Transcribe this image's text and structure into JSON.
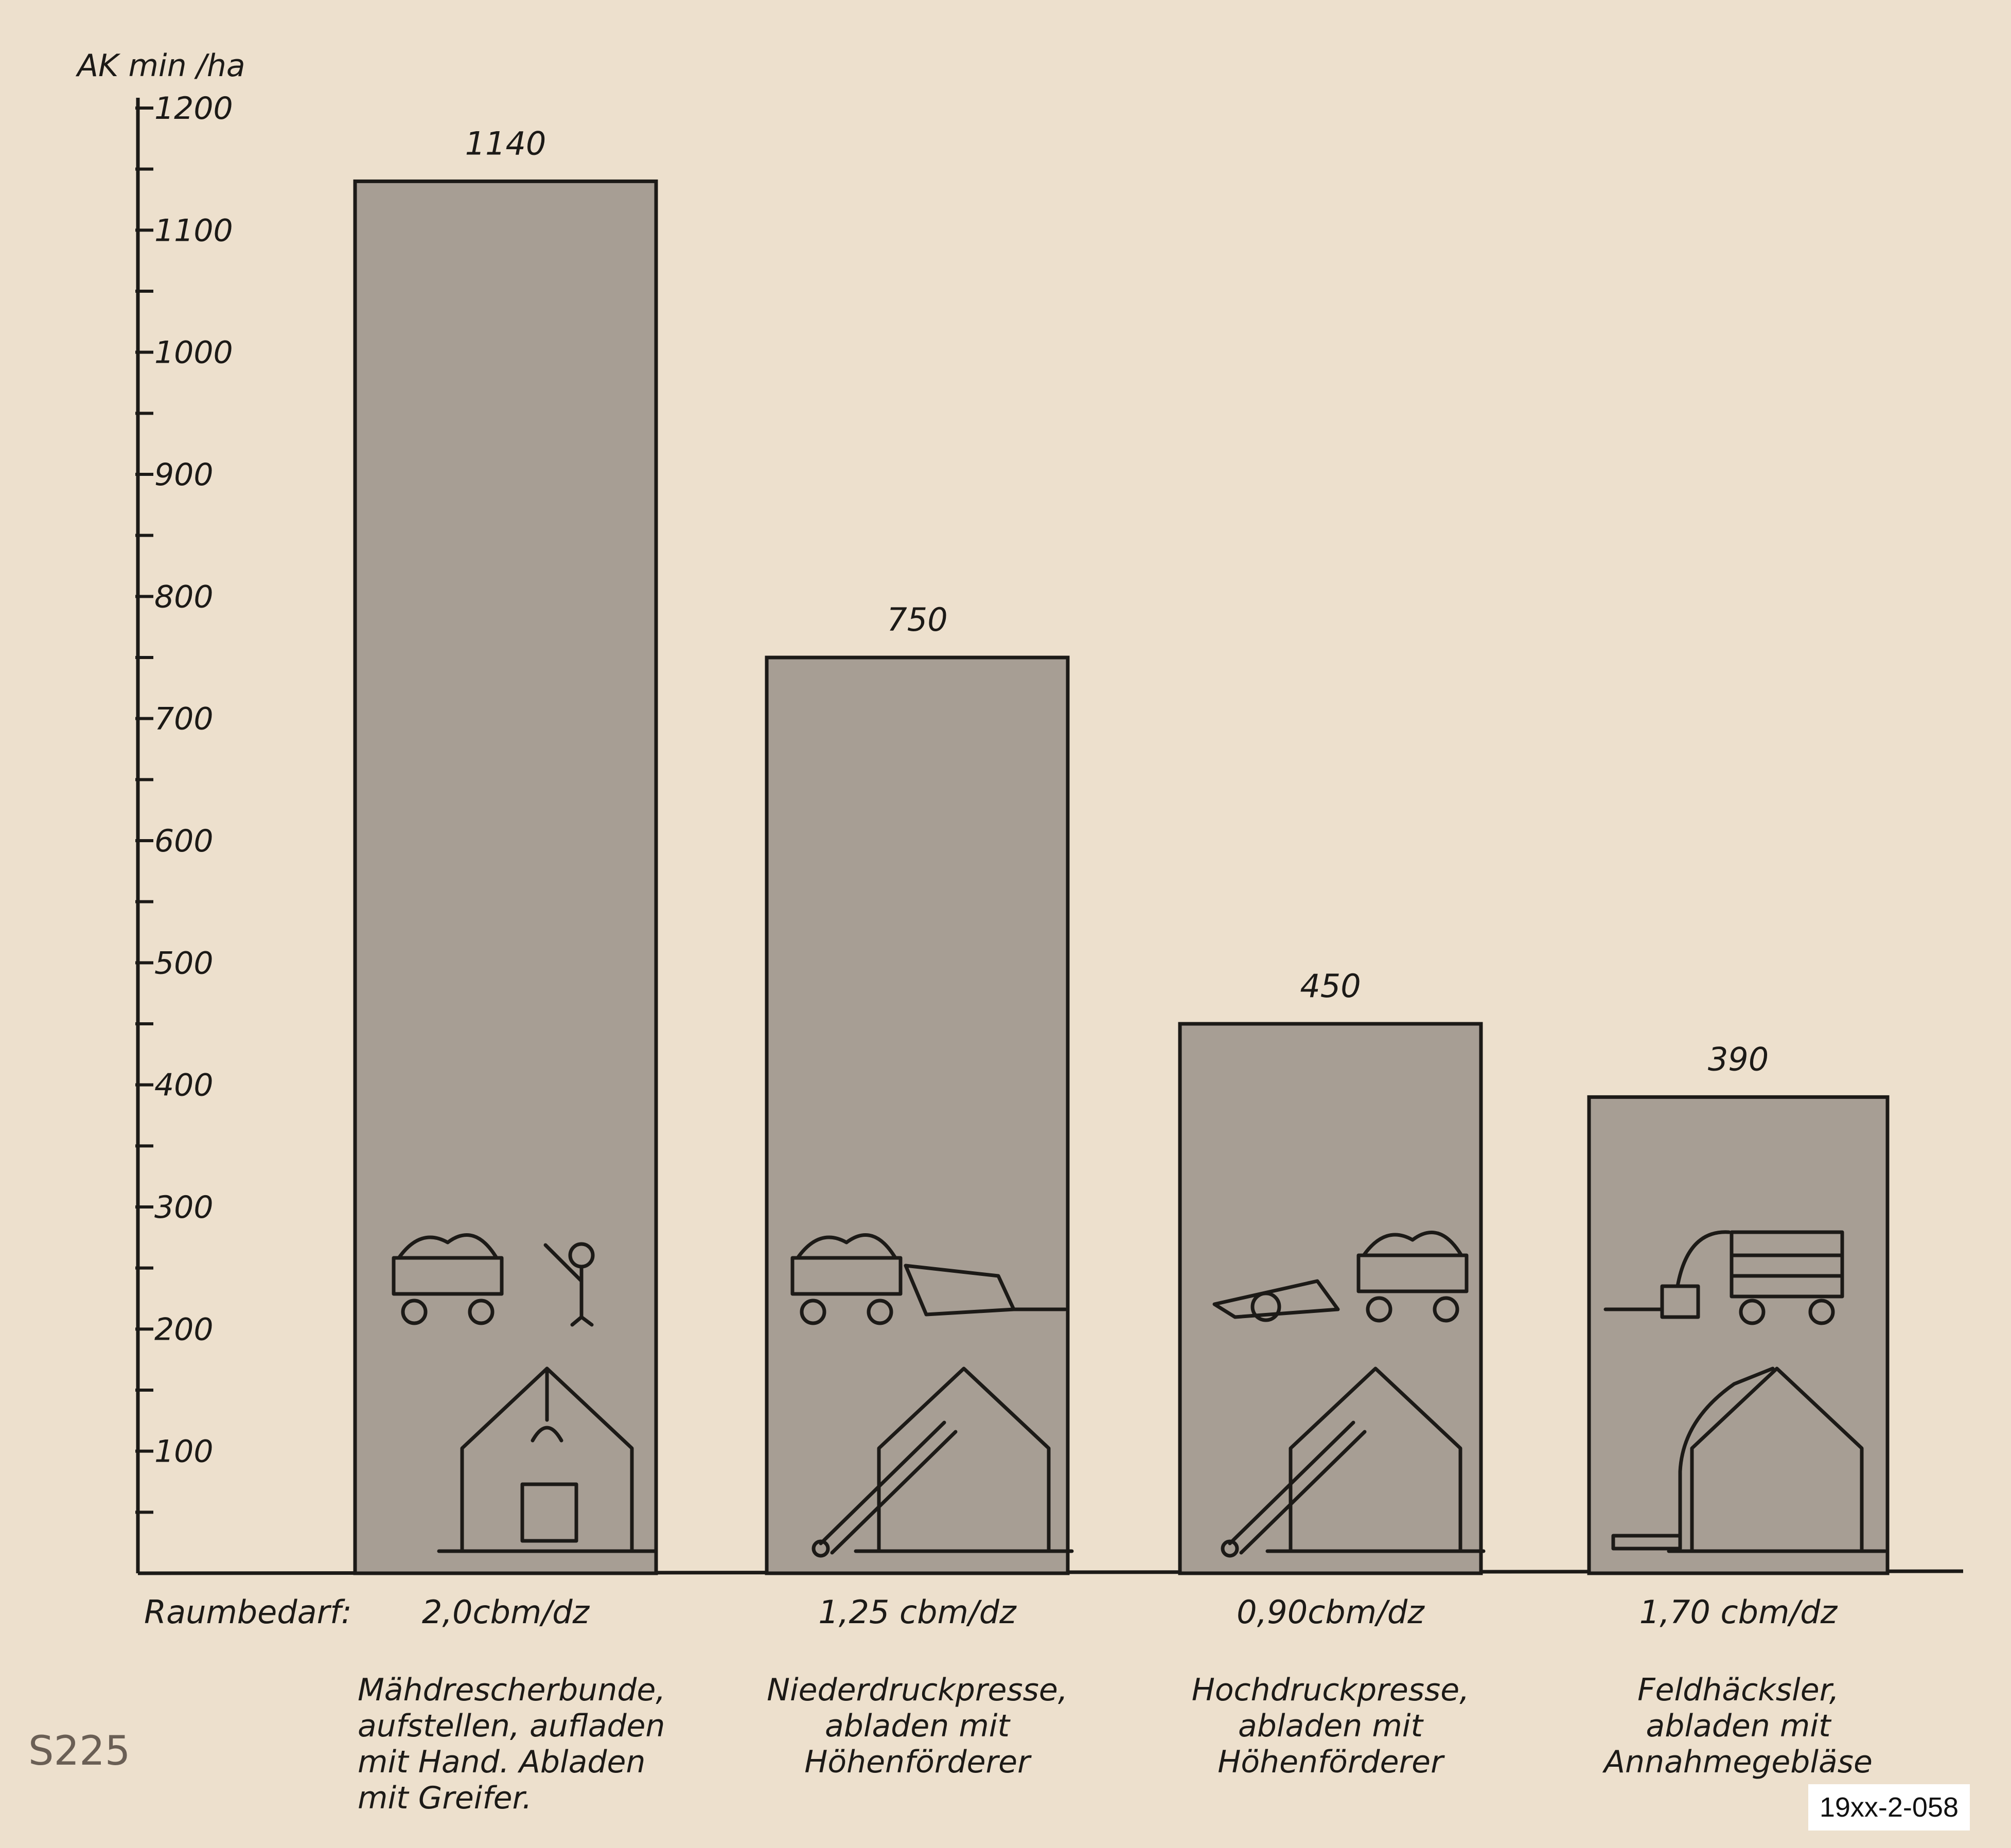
{
  "chart_data": {
    "type": "bar",
    "ylabel": "AK min /ha",
    "ylim": [
      0,
      1200
    ],
    "yticks": [
      100,
      200,
      300,
      400,
      500,
      600,
      700,
      800,
      900,
      1000,
      1100,
      1200
    ],
    "grid": false,
    "categories": [
      "Mähdrescherbunde, aufstellen, aufladen mit Hand. Abladen mit Greifer.",
      "Niederdruckpresse, abladen mit Höhenförderer",
      "Hochdruckpresse, abladen mit Höhenförderer",
      "Feldhäcksler, abladen mit Annahmegebläse"
    ],
    "values": [
      1140,
      750,
      450,
      390
    ],
    "value_labels": [
      "1140",
      "750",
      "450",
      "390"
    ],
    "category_lines": [
      [
        "Mähdrescherbunde,",
        "aufstellen, aufladen",
        "mit Hand. Abladen",
        "mit Greifer."
      ],
      [
        "Niederdruckpresse,",
        "abladen mit",
        "Höhenförderer"
      ],
      [
        "Hochdruckpresse,",
        "abladen mit",
        "Höhenförderer"
      ],
      [
        "Feldhäcksler,",
        "abladen mit",
        "Annahmegebläse"
      ]
    ],
    "space_label": "Raumbedarf:",
    "space_values": [
      "2,0cbm/dz",
      "1,25 cbm/dz",
      "0,90cbm/dz",
      "1,70 cbm/dz"
    ],
    "bar_color": "#a79e94"
  },
  "annotations": {
    "handwritten_note": "S225",
    "archive_id": "19xx-2-058"
  }
}
